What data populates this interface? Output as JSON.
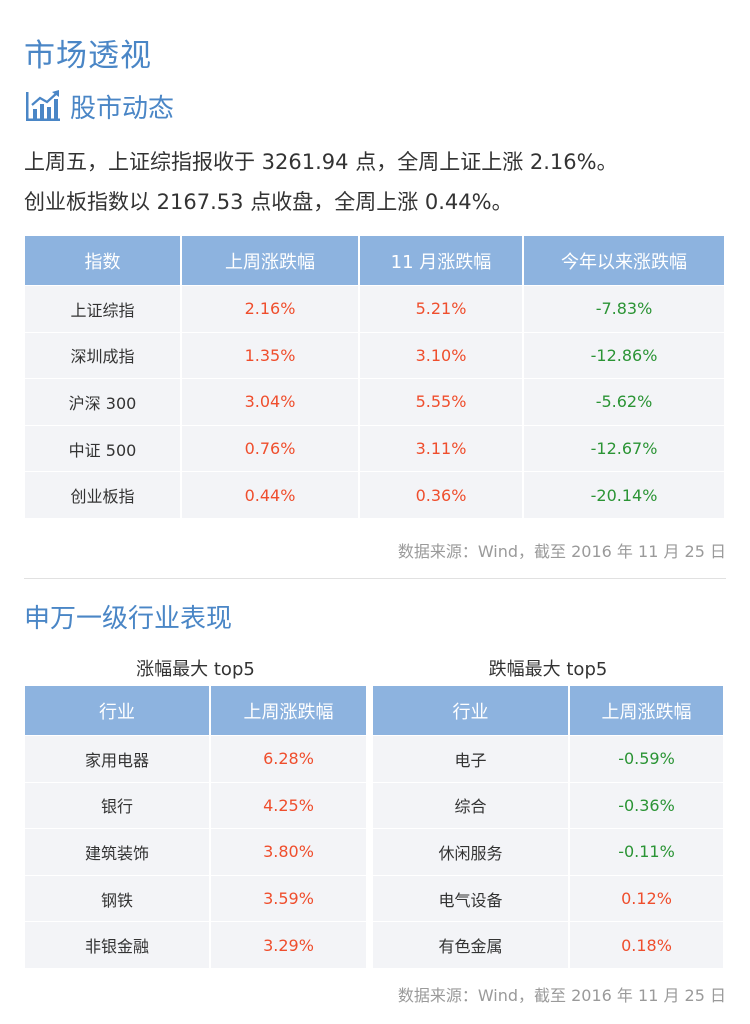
{
  "page_title": "市场透视",
  "section1": {
    "title": "股市动态",
    "summary_lines": [
      "上周五，上证综指报收于 3261.94 点，全周上证上涨 2.16%。",
      "创业板指数以 2167.53 点收盘，全周上涨 0.44%。"
    ],
    "table": {
      "headers": [
        "指数",
        "上周涨跌幅",
        "11 月涨跌幅",
        "今年以来涨跌幅"
      ],
      "rows": [
        [
          "上证综指",
          "2.16%",
          "5.21%",
          "-7.83%"
        ],
        [
          "深圳成指",
          "1.35%",
          "3.10%",
          "-12.86%"
        ],
        [
          "沪深 300",
          "3.04%",
          "5.55%",
          "-5.62%"
        ],
        [
          "中证 500",
          "0.76%",
          "3.11%",
          "-12.67%"
        ],
        [
          "创业板指",
          "0.44%",
          "0.36%",
          "-20.14%"
        ]
      ]
    },
    "source": "数据来源：Wind，截至 2016 年 11 月 25 日"
  },
  "section2": {
    "title": "申万一级行业表现",
    "gainers": {
      "title": "涨幅最大 top5",
      "headers": [
        "行业",
        "上周涨跌幅"
      ],
      "rows": [
        [
          "家用电器",
          "6.28%"
        ],
        [
          "银行",
          "4.25%"
        ],
        [
          "建筑装饰",
          "3.80%"
        ],
        [
          "钢铁",
          "3.59%"
        ],
        [
          "非银金融",
          "3.29%"
        ]
      ]
    },
    "losers": {
      "title": "跌幅最大 top5",
      "headers": [
        "行业",
        "上周涨跌幅"
      ],
      "rows": [
        [
          "电子",
          "-0.59%"
        ],
        [
          "综合",
          "-0.36%"
        ],
        [
          "休闲服务",
          "-0.11%"
        ],
        [
          "电气设备",
          "0.12%"
        ],
        [
          "有色金属",
          "0.18%"
        ]
      ]
    },
    "source": "数据来源：Wind，截至 2016 年 11 月 25 日"
  },
  "colors": {
    "title_blue": "#4a86c6",
    "header_bg": "#8db3df",
    "row_bg": "#f3f4f7",
    "up_red": "#ef4e2d",
    "down_green": "#2b9435",
    "note_gray": "#9a9a9a"
  },
  "icons": {
    "section1_icon": "bar-chart-trend-icon"
  }
}
